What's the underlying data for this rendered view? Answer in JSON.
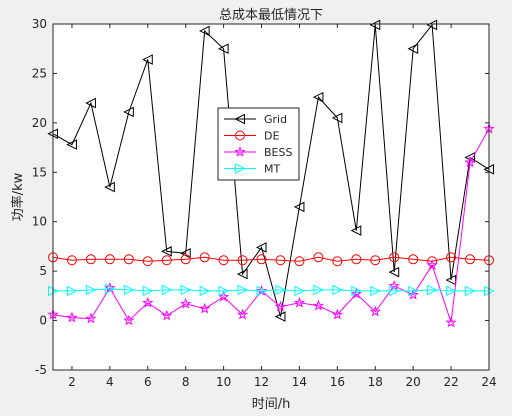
{
  "chart_data": {
    "type": "line",
    "title": "总成本最低情况下",
    "xlabel": "时间/h",
    "ylabel": "功率/kw",
    "xlim": [
      1,
      24
    ],
    "ylim": [
      -5,
      30
    ],
    "x_ticks": [
      "2",
      "4",
      "6",
      "8",
      "10",
      "12",
      "14",
      "16",
      "18",
      "20",
      "22",
      "24"
    ],
    "y_ticks": [
      "-5",
      "0",
      "5",
      "10",
      "15",
      "20",
      "25",
      "30"
    ],
    "grid": false,
    "legend_position": "center-left",
    "x": [
      1,
      2,
      3,
      4,
      5,
      6,
      7,
      8,
      9,
      10,
      11,
      12,
      13,
      14,
      15,
      16,
      17,
      18,
      19,
      20,
      21,
      22,
      23,
      24
    ],
    "series": [
      {
        "name": "Grid",
        "color": "#000000",
        "marker": "triangle-left",
        "values": [
          18.9,
          17.8,
          22.0,
          13.5,
          21.1,
          26.4,
          7.0,
          6.8,
          29.3,
          27.5,
          4.7,
          7.4,
          0.4,
          11.5,
          22.6,
          20.5,
          9.1,
          29.9,
          4.9,
          27.5,
          29.9,
          4.1,
          16.5,
          15.3
        ]
      },
      {
        "name": "DE",
        "color": "#ff0000",
        "marker": "circle",
        "values": [
          6.4,
          6.1,
          6.2,
          6.2,
          6.2,
          6.0,
          6.1,
          6.2,
          6.4,
          6.1,
          6.1,
          6.2,
          6.1,
          6.0,
          6.4,
          6.0,
          6.2,
          6.1,
          6.4,
          6.2,
          6.0,
          6.4,
          6.2,
          6.1
        ]
      },
      {
        "name": "BESS",
        "color": "#ff00ff",
        "marker": "star",
        "values": [
          0.6,
          0.3,
          0.2,
          3.3,
          0.0,
          1.8,
          0.5,
          1.7,
          1.2,
          2.4,
          0.6,
          3.0,
          1.4,
          1.8,
          1.5,
          0.6,
          2.7,
          0.9,
          3.5,
          2.6,
          5.6,
          -0.2,
          16.0,
          19.4
        ]
      },
      {
        "name": "MT",
        "color": "#00ffff",
        "marker": "triangle-right",
        "values": [
          3.0,
          3.0,
          3.1,
          3.2,
          3.1,
          3.0,
          3.1,
          3.1,
          3.0,
          3.0,
          3.1,
          3.0,
          3.1,
          3.0,
          3.1,
          3.1,
          3.0,
          3.0,
          3.0,
          3.0,
          3.1,
          3.0,
          3.0,
          3.0
        ]
      }
    ]
  }
}
